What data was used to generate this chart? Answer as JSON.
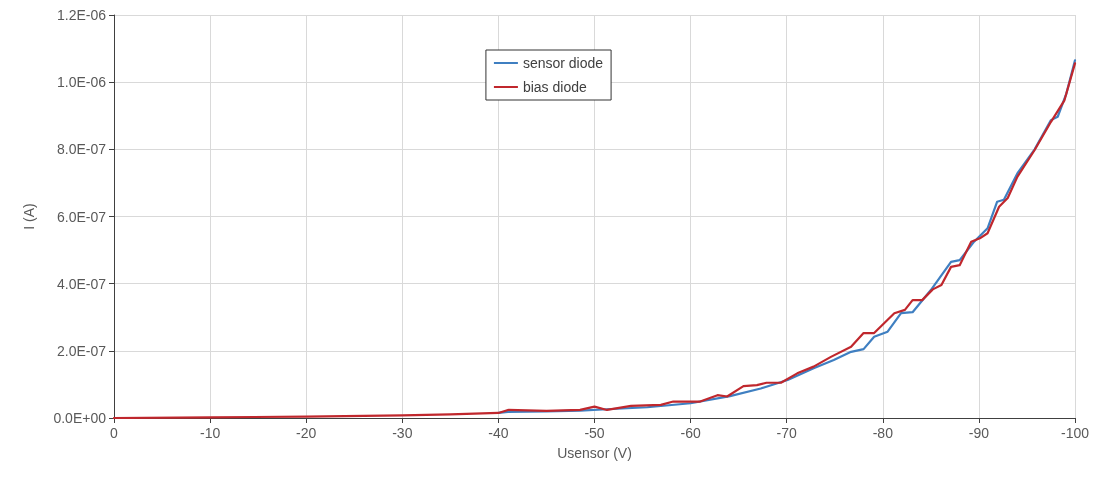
{
  "chart_data": {
    "type": "line",
    "xlabel": "Usensor (V)",
    "ylabel": "I (A)",
    "xlim": [
      0,
      -100
    ],
    "xticks": [
      0,
      -10,
      -20,
      -30,
      -40,
      -50,
      -60,
      -70,
      -80,
      -90,
      -100
    ],
    "ylim": [
      0,
      1.2e-06
    ],
    "yticks": [
      {
        "value": 0,
        "label": "0.0E+00"
      },
      {
        "value": 2e-07,
        "label": "2.0E-07"
      },
      {
        "value": 4e-07,
        "label": "4.0E-07"
      },
      {
        "value": 6e-07,
        "label": "6.0E-07"
      },
      {
        "value": 8e-07,
        "label": "8.0E-07"
      },
      {
        "value": 1e-06,
        "label": "1.0E-06"
      },
      {
        "value": 1.2e-06,
        "label": "1.2E-06"
      }
    ],
    "grid": true,
    "legend": "top",
    "marker": "none",
    "line_style": "solid",
    "series": [
      {
        "name": "sensor diode",
        "color": "#3f7fc1",
        "x": [
          -40,
          -41,
          -45,
          -48.5,
          -51.3,
          -55.5,
          -60,
          -64.1,
          -67.3,
          -70.1,
          -72.8,
          -74.9,
          -76.7,
          -78,
          -79.1,
          -80.5,
          -81.9,
          -83.1,
          -85,
          -87.1,
          -88,
          -89.5,
          -90.9,
          -91.9,
          -92.6,
          -94,
          -95.8,
          -97.5,
          -98.2,
          -99.1,
          -100
        ],
        "values": [
          1.5e-08,
          1.8e-08,
          2e-08,
          2.2e-08,
          2.6e-08,
          3.2e-08,
          4.4e-08,
          6.5e-08,
          8.8e-08,
          1.13e-07,
          1.48e-07,
          1.73e-07,
          1.97e-07,
          2.05e-07,
          2.42e-07,
          2.57e-07,
          3.12e-07,
          3.15e-07,
          3.81e-07,
          4.65e-07,
          4.7e-07,
          5.25e-07,
          5.65e-07,
          6.44e-07,
          6.5e-07,
          7.28e-07,
          8e-07,
          8.87e-07,
          8.97e-07,
          9.66e-07,
          1.065e-06
        ]
      },
      {
        "name": "bias diode",
        "color": "#c0272d",
        "x": [
          0,
          -10,
          -20,
          -30,
          -35,
          -40,
          -41,
          -45,
          -48.5,
          -50,
          -51.3,
          -53.8,
          -56.9,
          -58.2,
          -61,
          -62.8,
          -63.8,
          -65.5,
          -66.9,
          -67.9,
          -69.4,
          -71.1,
          -72.8,
          -74.6,
          -76.7,
          -78,
          -79.1,
          -81.2,
          -82.3,
          -83.1,
          -84.1,
          -85.2,
          -86.1,
          -87.1,
          -88,
          -89.2,
          -90.1,
          -90.9,
          -92.1,
          -93,
          -94,
          -95.8,
          -97.5,
          -98.9,
          -100
        ],
        "values": [
          0,
          2e-09,
          4e-09,
          8e-09,
          1.1e-08,
          1.5e-08,
          2.4e-08,
          2.1e-08,
          2.4e-08,
          3.4e-08,
          2.4e-08,
          3.6e-08,
          3.9e-08,
          4.9e-08,
          4.9e-08,
          6.8e-08,
          6.4e-08,
          9.5e-08,
          9.8e-08,
          1.05e-07,
          1.05e-07,
          1.33e-07,
          1.53e-07,
          1.82e-07,
          2.12e-07,
          2.53e-07,
          2.53e-07,
          3.12e-07,
          3.22e-07,
          3.51e-07,
          3.51e-07,
          3.83e-07,
          3.96e-07,
          4.5e-07,
          4.55e-07,
          5.25e-07,
          5.35e-07,
          5.5e-07,
          6.29e-07,
          6.55e-07,
          7.18e-07,
          7.98e-07,
          8.82e-07,
          9.46e-07,
          1.056e-06
        ]
      }
    ]
  }
}
